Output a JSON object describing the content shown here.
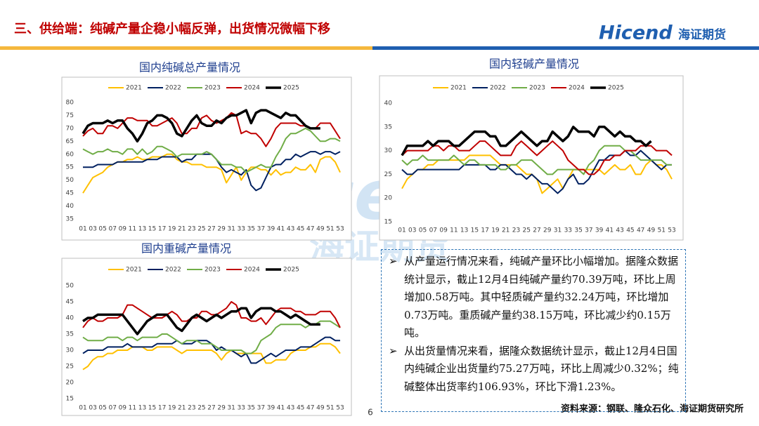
{
  "header": {
    "title": "三、供给端：纯碱产量企稳小幅反弹，出货情况微幅下移",
    "logo": "Hicend",
    "logo_cn": "海证期货"
  },
  "text": {
    "bullets": [
      "从产量运行情况来看，纯碱产量环比小幅增加。据隆众数据统计显示，截止12月4日纯碱产量约70.39万吨，环比上周增加0.58万吨。其中轻质碱产量约32.24万吨，环比增加0.73万吨。重质碱产量约38.15万吨，环比减少约0.15万吨。",
      "从出货量情况来看，据隆众数据统计显示，截止12月4日国内纯碱企业出货量约75.27万吨，环比上周减少0.32%；纯碱整体出货率约106.93%，环比下滑1.23%。"
    ]
  },
  "page_number": 6,
  "source": "资料来源：钢联、隆众石化、海证期货研究所",
  "chart_data": [
    {
      "type": "line",
      "title": "国内纯碱总产量情况",
      "grid": false,
      "legend": "top",
      "categories": [
        "01",
        null,
        "03",
        null,
        "05",
        null,
        "07",
        null,
        "09",
        null,
        "11",
        null,
        "13",
        null,
        "15",
        null,
        "17",
        null,
        "19",
        null,
        "21",
        null,
        "23",
        null,
        "25",
        null,
        "27",
        null,
        "29",
        null,
        "31",
        null,
        "33",
        null,
        "35",
        null,
        "37",
        null,
        "39",
        null,
        "41",
        null,
        "43",
        null,
        "45",
        null,
        "47",
        null,
        "49",
        null,
        "51",
        null,
        "53"
      ],
      "ylim": [
        35,
        80
      ],
      "yticks": [
        35,
        40,
        45,
        50,
        55,
        60,
        65,
        70,
        75,
        80
      ],
      "series": [
        {
          "name": "2021",
          "color": "#ffc000",
          "values": [
            45,
            48,
            51,
            52,
            53,
            55,
            56,
            57,
            57,
            58,
            58,
            59,
            58,
            58,
            59,
            59,
            59,
            60,
            60,
            58,
            57,
            57,
            56,
            56,
            56,
            55,
            55,
            55,
            54,
            49,
            52,
            55,
            50,
            53,
            55,
            55,
            54,
            54,
            52,
            54,
            52,
            53,
            53,
            55,
            54,
            54,
            56,
            53,
            58,
            59,
            59,
            57,
            53
          ]
        },
        {
          "name": "2022",
          "color": "#002060",
          "values": [
            55,
            55,
            55,
            56,
            56,
            56,
            56,
            57,
            57,
            57,
            57,
            57,
            57,
            58,
            58,
            58,
            59,
            59,
            59,
            59,
            57,
            58,
            58,
            60,
            60,
            60,
            60,
            58,
            55,
            53,
            54,
            53,
            52,
            54,
            48,
            46,
            47,
            51,
            55,
            56,
            56,
            58,
            58,
            60,
            59,
            60,
            61,
            61,
            60,
            61,
            61,
            60,
            61
          ]
        },
        {
          "name": "2023",
          "color": "#70ad47",
          "values": [
            62,
            61,
            60,
            61,
            61,
            62,
            61,
            61,
            60,
            62,
            62,
            60,
            62,
            60,
            61,
            63,
            63,
            62,
            61,
            59,
            60,
            60,
            60,
            60,
            60,
            61,
            60,
            58,
            56,
            56,
            56,
            55,
            55,
            53,
            54,
            55,
            56,
            55,
            55,
            59,
            62,
            66,
            68,
            68,
            69,
            70,
            69,
            67,
            65,
            65,
            66,
            66,
            65
          ]
        },
        {
          "name": "2024",
          "color": "#c00000",
          "values": [
            67,
            69,
            70,
            68,
            68,
            71,
            71,
            70,
            72,
            74,
            74,
            73,
            73,
            73,
            71,
            71,
            72,
            73,
            74,
            72,
            68,
            68,
            70,
            70,
            74,
            75,
            73,
            72,
            73,
            74,
            76,
            75,
            68,
            69,
            68,
            68,
            66,
            63,
            66,
            70,
            72,
            72,
            72,
            72,
            71,
            71,
            70,
            70,
            72,
            72,
            72,
            69,
            66
          ]
        },
        {
          "name": "2025",
          "color": "#000000",
          "values": [
            68,
            71,
            72,
            72,
            72,
            73,
            72,
            73,
            73,
            70,
            68,
            65,
            68,
            72,
            73,
            75,
            75,
            74,
            72,
            68,
            67,
            70,
            73,
            75,
            72,
            71,
            71,
            73,
            72,
            74,
            75,
            75,
            76,
            77,
            72,
            76,
            77,
            77,
            76,
            75,
            74,
            76,
            75,
            75,
            73,
            71,
            70,
            70,
            70,
            null,
            null,
            null,
            null
          ]
        }
      ]
    },
    {
      "type": "line",
      "title": "国内轻碱产量情况",
      "grid": false,
      "legend": "top",
      "categories": [
        "01",
        null,
        "03",
        null,
        "05",
        null,
        "07",
        null,
        "09",
        null,
        "11",
        null,
        "13",
        null,
        "15",
        null,
        "17",
        null,
        "19",
        null,
        "21",
        null,
        "23",
        null,
        "25",
        null,
        "27",
        null,
        "29",
        null,
        "31",
        null,
        "33",
        null,
        "35",
        null,
        "37",
        null,
        "39",
        null,
        "41",
        null,
        "43",
        null,
        "45",
        null,
        "47",
        null,
        "49",
        null,
        "51",
        null,
        "53"
      ],
      "ylim": [
        15,
        40
      ],
      "yticks": [
        15,
        20,
        25,
        30,
        35,
        40
      ],
      "series": [
        {
          "name": "2021",
          "color": "#ffc000",
          "values": [
            22,
            24,
            25,
            26,
            26,
            27,
            27,
            28,
            28,
            28,
            28,
            28,
            28,
            29,
            29,
            29,
            29,
            29,
            28,
            27,
            27,
            27,
            27,
            26,
            25,
            25,
            24,
            21,
            22,
            23,
            24,
            22,
            24,
            26,
            26,
            26,
            26,
            26,
            26,
            25,
            26,
            27,
            26,
            26,
            27,
            25,
            25,
            27,
            28,
            27,
            27,
            26,
            24
          ]
        },
        {
          "name": "2022",
          "color": "#002060",
          "values": [
            26,
            25,
            25,
            26,
            26,
            26,
            26,
            26,
            26,
            26,
            26,
            26,
            27,
            27,
            27,
            27,
            27,
            26,
            26,
            27,
            27,
            26,
            25,
            25,
            24,
            25,
            24,
            23,
            23,
            22,
            21,
            22,
            24,
            25,
            23,
            23,
            24,
            26,
            28,
            28,
            29,
            29,
            29,
            30,
            29,
            29,
            30,
            29,
            28,
            27,
            26,
            27,
            27
          ]
        },
        {
          "name": "2023",
          "color": "#70ad47",
          "values": [
            28,
            27,
            28,
            28,
            29,
            28,
            28,
            28,
            28,
            28,
            29,
            28,
            27,
            28,
            28,
            27,
            27,
            27,
            27,
            26,
            26,
            27,
            27,
            28,
            28,
            28,
            27,
            26,
            25,
            25,
            26,
            26,
            26,
            26,
            26,
            25,
            27,
            28,
            30,
            31,
            31,
            31,
            31,
            30,
            30,
            29,
            28,
            28,
            28,
            28,
            28,
            27,
            27
          ]
        },
        {
          "name": "2024",
          "color": "#c00000",
          "values": [
            29,
            30,
            30,
            30,
            30,
            30,
            31,
            31,
            30,
            31,
            31,
            30,
            30,
            30,
            31,
            32,
            32,
            31,
            30,
            29,
            29,
            29,
            31,
            32,
            31,
            30,
            29,
            30,
            31,
            32,
            31,
            30,
            28,
            27,
            26,
            26,
            25,
            25,
            26,
            28,
            28,
            29,
            29,
            30,
            30,
            30,
            31,
            31,
            31,
            30,
            30,
            30,
            29
          ]
        },
        {
          "name": "2025",
          "color": "#000000",
          "values": [
            29,
            31,
            31,
            31,
            31,
            32,
            31,
            32,
            32,
            32,
            31,
            31,
            32,
            33,
            34,
            34,
            34,
            33,
            33,
            31,
            31,
            32,
            33,
            34,
            33,
            32,
            31,
            32,
            32,
            34,
            33,
            32,
            33,
            35,
            34,
            34,
            34,
            33,
            35,
            35,
            34,
            33,
            34,
            33,
            33,
            32,
            32,
            31,
            32,
            null,
            null,
            null,
            null
          ]
        }
      ]
    },
    {
      "type": "line",
      "title": "国内重碱产量情况",
      "grid": false,
      "legend": "top",
      "categories": [
        "01",
        null,
        "03",
        null,
        "05",
        null,
        "07",
        null,
        "09",
        null,
        "11",
        null,
        "13",
        null,
        "15",
        null,
        "17",
        null,
        "19",
        null,
        "21",
        null,
        "23",
        null,
        "25",
        null,
        "27",
        null,
        "29",
        null,
        "31",
        null,
        "33",
        null,
        "35",
        null,
        "37",
        null,
        "39",
        null,
        "41",
        null,
        "43",
        null,
        "45",
        null,
        "47",
        null,
        "49",
        null,
        "51",
        null,
        "53"
      ],
      "ylim": [
        15,
        50
      ],
      "yticks": [
        15,
        20,
        25,
        30,
        35,
        40,
        45,
        50
      ],
      "series": [
        {
          "name": "2021",
          "color": "#ffc000",
          "values": [
            24,
            25,
            27,
            28,
            28,
            29,
            29,
            30,
            30,
            30,
            31,
            31,
            31,
            30,
            30,
            31,
            31,
            31,
            31,
            30,
            29,
            30,
            30,
            30,
            30,
            30,
            30,
            29,
            27,
            29,
            30,
            29,
            29,
            29,
            29,
            29,
            29,
            26,
            26,
            27,
            27,
            27,
            29,
            30,
            30,
            30,
            31,
            31,
            32,
            32,
            32,
            31,
            29
          ]
        },
        {
          "name": "2022",
          "color": "#002060",
          "values": [
            29,
            30,
            30,
            30,
            30,
            31,
            31,
            31,
            31,
            32,
            31,
            31,
            31,
            31,
            31,
            32,
            32,
            32,
            32,
            33,
            32,
            32,
            32,
            33,
            33,
            33,
            32,
            30,
            31,
            30,
            30,
            29,
            28,
            29,
            26,
            26,
            27,
            28,
            29,
            28,
            29,
            30,
            30,
            30,
            31,
            31,
            31,
            32,
            33,
            34,
            34,
            33,
            33
          ]
        },
        {
          "name": "2023",
          "color": "#70ad47",
          "values": [
            34,
            33,
            33,
            33,
            33,
            34,
            34,
            34,
            33,
            34,
            34,
            33,
            34,
            34,
            34,
            34,
            35,
            35,
            34,
            33,
            32,
            33,
            33,
            33,
            32,
            32,
            32,
            31,
            30,
            30,
            30,
            30,
            30,
            29,
            29,
            30,
            33,
            34,
            35,
            37,
            38,
            38,
            38,
            38,
            38,
            37,
            38,
            38,
            39,
            39,
            39,
            38,
            37
          ]
        },
        {
          "name": "2024",
          "color": "#c00000",
          "values": [
            37,
            39,
            40,
            39,
            39,
            40,
            40,
            40,
            41,
            44,
            44,
            43,
            42,
            41,
            40,
            40,
            40,
            41,
            42,
            41,
            39,
            39,
            40,
            40,
            42,
            42,
            41,
            41,
            42,
            43,
            45,
            44,
            40,
            40,
            39,
            39,
            40,
            38,
            40,
            42,
            43,
            43,
            43,
            42,
            42,
            41,
            41,
            41,
            42,
            42,
            42,
            40,
            37
          ]
        },
        {
          "name": "2025",
          "color": "#000000",
          "values": [
            39,
            40,
            40,
            41,
            41,
            41,
            41,
            41,
            41,
            39,
            37,
            35,
            37,
            39,
            40,
            41,
            41,
            41,
            39,
            37,
            36,
            38,
            40,
            41,
            40,
            39,
            40,
            41,
            40,
            41,
            42,
            42,
            43,
            43,
            40,
            42,
            43,
            43,
            43,
            42,
            42,
            41,
            40,
            41,
            40,
            39,
            38,
            38,
            38,
            null,
            null,
            null,
            null
          ]
        }
      ]
    }
  ]
}
